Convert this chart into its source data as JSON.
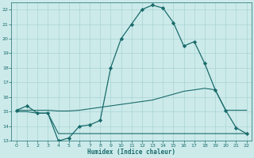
{
  "xlabel": "Humidex (Indice chaleur)",
  "xlim": [
    -0.5,
    22.5
  ],
  "ylim": [
    13,
    22.5
  ],
  "yticks": [
    13,
    14,
    15,
    16,
    17,
    18,
    19,
    20,
    21,
    22
  ],
  "xticks": [
    0,
    1,
    2,
    3,
    4,
    5,
    6,
    7,
    8,
    9,
    10,
    11,
    12,
    13,
    14,
    15,
    16,
    17,
    18,
    19,
    20,
    21,
    22
  ],
  "bg_color": "#cceaea",
  "line_color": "#1a6b6b",
  "line1_x": [
    0,
    1,
    2,
    3,
    4,
    5,
    6,
    7,
    8,
    9,
    10,
    11,
    12,
    13,
    14,
    15,
    16,
    17,
    18,
    19,
    20,
    21,
    22
  ],
  "line1_y": [
    15.1,
    15.4,
    14.9,
    14.9,
    13.0,
    13.2,
    14.0,
    14.1,
    14.4,
    18.0,
    20.0,
    21.0,
    22.0,
    22.3,
    22.1,
    21.1,
    19.5,
    19.8,
    18.3,
    16.5,
    15.1,
    13.9,
    13.5
  ],
  "line2_x": [
    0,
    1,
    2,
    3,
    4,
    5,
    6,
    7,
    8,
    9,
    10,
    11,
    12,
    13,
    14,
    15,
    16,
    17,
    18,
    19,
    20,
    21,
    22
  ],
  "line2_y": [
    15.1,
    15.1,
    15.1,
    15.1,
    15.05,
    15.05,
    15.1,
    15.2,
    15.3,
    15.4,
    15.5,
    15.6,
    15.7,
    15.8,
    16.0,
    16.2,
    16.4,
    16.5,
    16.6,
    16.5,
    15.1,
    15.1,
    15.1
  ],
  "line3_x": [
    0,
    1,
    2,
    3,
    4,
    5,
    6,
    7,
    8,
    9,
    10,
    11,
    12,
    13,
    14,
    15,
    16,
    17,
    18,
    19,
    20,
    21,
    22
  ],
  "line3_y": [
    15.0,
    15.0,
    14.9,
    14.9,
    13.5,
    13.5,
    13.5,
    13.5,
    13.5,
    13.5,
    13.5,
    13.5,
    13.5,
    13.5,
    13.5,
    13.5,
    13.5,
    13.5,
    13.5,
    13.5,
    13.5,
    13.5,
    13.5
  ]
}
